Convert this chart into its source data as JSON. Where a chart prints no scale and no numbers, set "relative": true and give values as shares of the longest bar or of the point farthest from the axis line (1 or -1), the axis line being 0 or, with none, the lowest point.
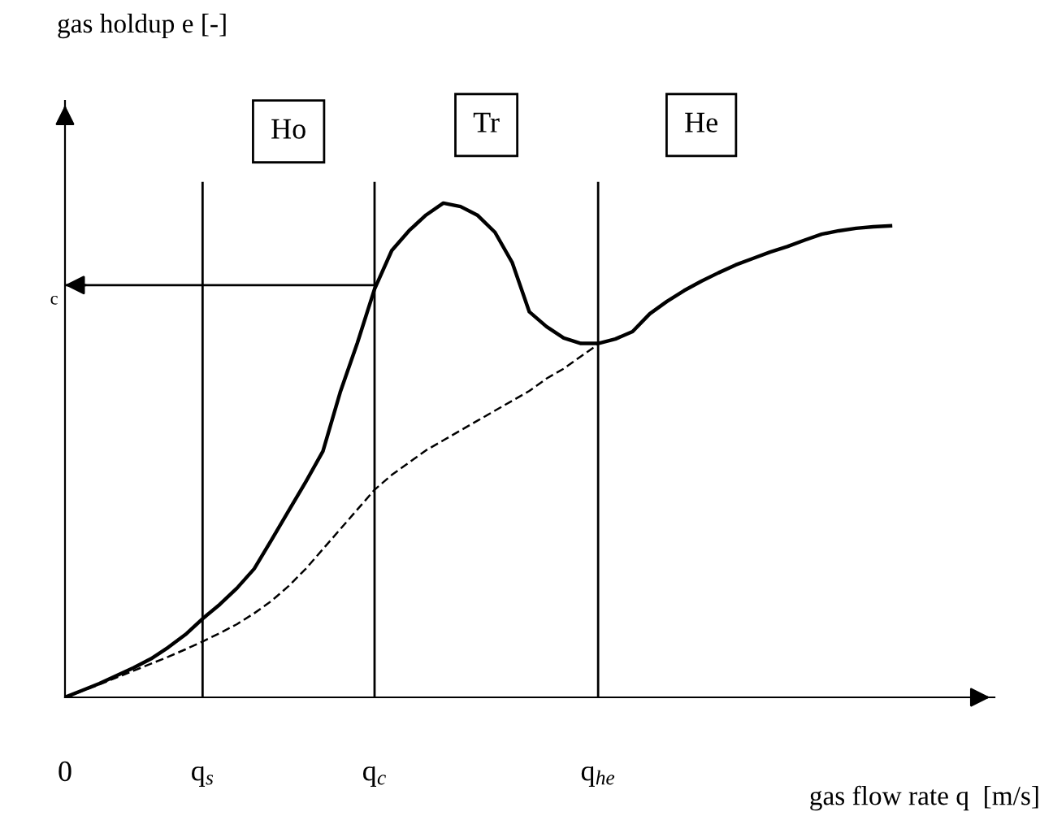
{
  "chart_data": {
    "type": "line",
    "relative": true,
    "xlabel": "gas flow rate q  [m/s]",
    "categories": [
      "0",
      null,
      null,
      null,
      null,
      null,
      null,
      null,
      "q$_{s}$",
      null,
      null,
      null,
      null,
      null,
      null,
      null,
      null,
      null,
      "q$_{c}$",
      null,
      null,
      null,
      null,
      null,
      null,
      null,
      null,
      null,
      null,
      null,
      null,
      "q$_{he}$",
      null,
      null,
      null,
      null,
      null,
      null,
      null,
      null,
      null,
      null,
      null,
      null,
      null,
      null,
      null,
      null,
      null
    ],
    "series": [
      {
        "color": "#000000",
        "line_style": "solid",
        "values": [
          0,
          0.014,
          0.028,
          0.044,
          0.06,
          0.078,
          0.101,
          0.127,
          0.159,
          0.188,
          0.221,
          0.26,
          0.318,
          0.377,
          0.436,
          0.498,
          0.617,
          0.717,
          0.826,
          0.904,
          0.944,
          0.976,
          1,
          0.993,
          0.975,
          0.941,
          0.88,
          0.78,
          0.75,
          0.727,
          0.716,
          0.716,
          0.725,
          0.74,
          0.776,
          0.801,
          0.823,
          0.842,
          0.859,
          0.875,
          0.888,
          0.901,
          0.912,
          0.925,
          0.937,
          0.944,
          0.949,
          0.952,
          0.954
        ]
      },
      {
        "color": "#000000",
        "line_style": "dashed",
        "values": [
          0,
          0.013,
          0.026,
          0.04,
          0.054,
          0.068,
          0.082,
          0.097,
          0.113,
          0.13,
          0.148,
          0.17,
          0.195,
          0.225,
          0.26,
          0.3,
          0.34,
          0.38,
          0.42,
          0.45,
          0.475,
          0.5,
          0.52,
          0.54,
          0.56,
          0.58,
          0.6,
          0.62,
          0.645,
          0.665,
          0.69,
          0.714,
          null,
          null,
          null,
          null,
          null,
          null,
          null,
          null,
          null,
          null,
          null,
          null,
          null,
          null,
          null,
          null,
          null
        ]
      }
    ],
    "ref_lines": [
      {
        "axis": "x",
        "value": "q$_{s}$",
        "color": "#000000"
      },
      {
        "axis": "x",
        "value": "q$_{c}$",
        "color": "#000000"
      },
      {
        "axis": "x",
        "value": "q$_{he}$",
        "color": "#000000"
      },
      {
        "axis": "y",
        "value": 0.834,
        "label": "c",
        "color": "#000000"
      }
    ],
    "annotations": [
      "gas holdup e [-]",
      "Ho",
      "Tr",
      "He"
    ]
  }
}
